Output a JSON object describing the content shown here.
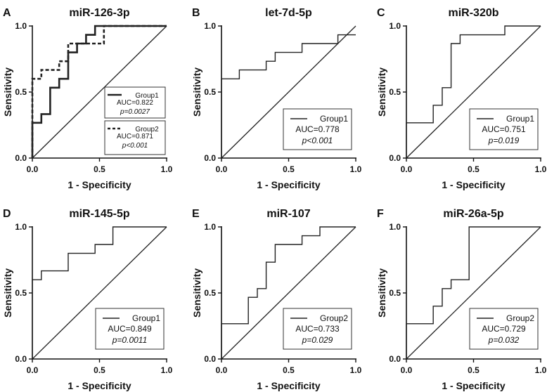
{
  "colors": {
    "line": "#222222",
    "diag": "#222222",
    "text": "#111111",
    "box": "#333333"
  },
  "chart_data": [
    {
      "type": "line",
      "letter": "A",
      "title": "miR-126-3p",
      "xlabel": "1 - Specificity",
      "ylabel": "Sensitivity",
      "xlim": [
        0,
        1
      ],
      "ylim": [
        0,
        1
      ],
      "xticks": [
        "0.0",
        "0.5",
        "1.0"
      ],
      "yticks": [
        "0.0",
        "0.5",
        "1.0"
      ],
      "legend_style": "separate",
      "series": [
        {
          "name": "Group1",
          "dash": "solid",
          "width": 2.6,
          "auc": "AUC=0.822",
          "p": "p=0.0027",
          "x": [
            0,
            0,
            0.067,
            0.067,
            0.133,
            0.133,
            0.2,
            0.2,
            0.267,
            0.267,
            0.333,
            0.333,
            0.4,
            0.4,
            0.467,
            0.467,
            0.533,
            0.533,
            1
          ],
          "y": [
            0,
            0.267,
            0.267,
            0.333,
            0.333,
            0.533,
            0.533,
            0.6,
            0.6,
            0.8,
            0.8,
            0.867,
            0.867,
            0.933,
            0.933,
            1,
            1,
            1,
            1
          ]
        },
        {
          "name": "Group2",
          "dash": "dashed",
          "width": 2.6,
          "auc": "AUC=0.871",
          "p": "p<0.001",
          "x": [
            0,
            0,
            0.067,
            0.067,
            0.2,
            0.2,
            0.267,
            0.267,
            0.533,
            0.533,
            1
          ],
          "y": [
            0,
            0.6,
            0.6,
            0.667,
            0.667,
            0.733,
            0.733,
            0.867,
            0.867,
            1,
            1
          ]
        }
      ]
    },
    {
      "type": "line",
      "letter": "B",
      "title": "let-7d-5p",
      "xlabel": "1 - Specificity",
      "ylabel": "Sensitivity",
      "xlim": [
        0,
        1
      ],
      "ylim": [
        0,
        1
      ],
      "xticks": [
        "0.0",
        "0.5",
        "1.0"
      ],
      "yticks": [
        "0.0",
        "0.5",
        "1.0"
      ],
      "legend_style": "single",
      "series": [
        {
          "name": "Group1",
          "dash": "solid",
          "width": 1.4,
          "auc": "AUC=0.778",
          "p": "p<0.001",
          "x": [
            0,
            0,
            0.133,
            0.133,
            0.333,
            0.333,
            0.4,
            0.4,
            0.6,
            0.6,
            0.867,
            0.867,
            0.933,
            0.933,
            1
          ],
          "y": [
            0,
            0.6,
            0.6,
            0.667,
            0.667,
            0.733,
            0.733,
            0.8,
            0.8,
            0.867,
            0.867,
            0.933,
            0.933,
            0.933,
            0.933
          ]
        }
      ]
    },
    {
      "type": "line",
      "letter": "C",
      "title": "miR-320b",
      "xlabel": "1 - Specificity",
      "ylabel": "Sensitivity",
      "xlim": [
        0,
        1
      ],
      "ylim": [
        0,
        1
      ],
      "xticks": [
        "0.0",
        "0.5",
        "1.0"
      ],
      "yticks": [
        "0.0",
        "0.5",
        "1.0"
      ],
      "legend_style": "single",
      "series": [
        {
          "name": "Group1",
          "dash": "solid",
          "width": 1.4,
          "auc": "AUC=0.751",
          "p": "p=0.019",
          "x": [
            0,
            0,
            0.2,
            0.2,
            0.267,
            0.267,
            0.333,
            0.333,
            0.4,
            0.4,
            0.733,
            0.733,
            1
          ],
          "y": [
            0,
            0.267,
            0.267,
            0.4,
            0.4,
            0.533,
            0.533,
            0.867,
            0.867,
            0.933,
            0.933,
            1,
            1
          ]
        }
      ]
    },
    {
      "type": "line",
      "letter": "D",
      "title": "miR-145-5p",
      "xlabel": "1 - Specificity",
      "ylabel": "Sensitivity",
      "xlim": [
        0,
        1
      ],
      "ylim": [
        0,
        1
      ],
      "xticks": [
        "0.0",
        "0.5",
        "1.0"
      ],
      "yticks": [
        "0.0",
        "0.5",
        "1.0"
      ],
      "legend_style": "single",
      "series": [
        {
          "name": "Group1",
          "dash": "solid",
          "width": 1.4,
          "auc": "AUC=0.849",
          "p": "p=0.0011",
          "x": [
            0,
            0,
            0.067,
            0.067,
            0.267,
            0.267,
            0.467,
            0.467,
            0.6,
            0.6,
            1
          ],
          "y": [
            0,
            0.6,
            0.6,
            0.667,
            0.667,
            0.8,
            0.8,
            0.867,
            0.867,
            1,
            1
          ]
        }
      ]
    },
    {
      "type": "line",
      "letter": "E",
      "title": "miR-107",
      "xlabel": "1 - Specificity",
      "ylabel": "Sensitivity",
      "xlim": [
        0,
        1
      ],
      "ylim": [
        0,
        1
      ],
      "xticks": [
        "0.0",
        "0.5",
        "1.0"
      ],
      "yticks": [
        "0.0",
        "0.5",
        "1.0"
      ],
      "legend_style": "single",
      "series": [
        {
          "name": "Group2",
          "dash": "solid",
          "width": 1.4,
          "auc": "AUC=0.733",
          "p": "p=0.029",
          "x": [
            0,
            0,
            0.2,
            0.2,
            0.267,
            0.267,
            0.333,
            0.333,
            0.4,
            0.4,
            0.6,
            0.6,
            0.733,
            0.733,
            1
          ],
          "y": [
            0,
            0.267,
            0.267,
            0.467,
            0.467,
            0.533,
            0.533,
            0.733,
            0.733,
            0.867,
            0.867,
            0.933,
            0.933,
            1,
            1
          ]
        }
      ]
    },
    {
      "type": "line",
      "letter": "F",
      "title": "miR-26a-5p",
      "xlabel": "1 - Specificity",
      "ylabel": "Sensitivity",
      "xlim": [
        0,
        1
      ],
      "ylim": [
        0,
        1
      ],
      "xticks": [
        "0.0",
        "0.5",
        "1.0"
      ],
      "yticks": [
        "0.0",
        "0.5",
        "1.0"
      ],
      "legend_style": "single",
      "series": [
        {
          "name": "Group2",
          "dash": "solid",
          "width": 1.4,
          "auc": "AUC=0.729",
          "p": "p=0.032",
          "x": [
            0,
            0,
            0.2,
            0.2,
            0.267,
            0.267,
            0.333,
            0.333,
            0.4,
            0.4,
            0.467,
            0.467,
            1
          ],
          "y": [
            0,
            0.267,
            0.267,
            0.4,
            0.4,
            0.533,
            0.533,
            0.6,
            0.6,
            0.6,
            0.6,
            1,
            1
          ]
        }
      ]
    }
  ]
}
